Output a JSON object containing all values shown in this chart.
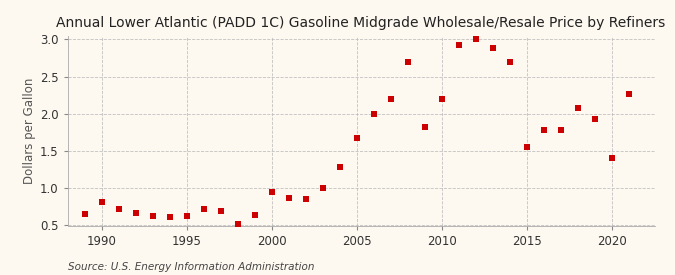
{
  "title": "Annual Lower Atlantic (PADD 1C) Gasoline Midgrade Wholesale/Resale Price by Refiners",
  "ylabel": "Dollars per Gallon",
  "source": "Source: U.S. Energy Information Administration",
  "background_color": "#fef9f0",
  "dot_color": "#cc0000",
  "years": [
    1989,
    1990,
    1991,
    1992,
    1993,
    1994,
    1995,
    1996,
    1997,
    1998,
    1999,
    2000,
    2001,
    2002,
    2003,
    2004,
    2005,
    2006,
    2007,
    2008,
    2009,
    2010,
    2011,
    2012,
    2013,
    2014,
    2015,
    2016,
    2017,
    2018,
    2019,
    2020,
    2021
  ],
  "values": [
    0.66,
    0.81,
    0.72,
    0.67,
    0.63,
    0.61,
    0.63,
    0.72,
    0.7,
    0.52,
    0.64,
    0.95,
    0.87,
    0.85,
    1.0,
    1.28,
    1.68,
    2.0,
    2.2,
    2.7,
    1.83,
    2.2,
    2.93,
    3.0,
    2.88,
    2.7,
    1.56,
    1.78,
    1.78,
    2.08,
    1.93,
    1.41,
    2.27
  ],
  "xlim": [
    1988.0,
    2022.5
  ],
  "ylim": [
    0.5,
    3.05
  ],
  "yticks": [
    0.5,
    1.0,
    1.5,
    2.0,
    2.5,
    3.0
  ],
  "xticks": [
    1990,
    1995,
    2000,
    2005,
    2010,
    2015,
    2020
  ],
  "grid_color": "#bbbbbb",
  "title_fontsize": 10,
  "label_fontsize": 8.5,
  "tick_fontsize": 8.5,
  "source_fontsize": 7.5
}
